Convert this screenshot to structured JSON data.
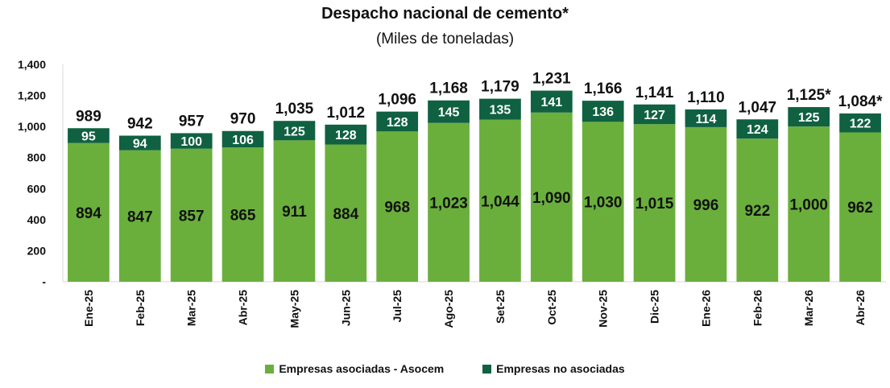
{
  "chart_data": {
    "type": "bar",
    "stacked": true,
    "title": "Despacho nacional de cemento*",
    "subtitle": "(Miles de toneladas)",
    "xlabel": "",
    "ylabel": "",
    "ylim": [
      0,
      1400
    ],
    "y_ticks": [
      0,
      200,
      400,
      600,
      800,
      1000,
      1200,
      1400
    ],
    "y_tick_labels": [
      "-",
      "200",
      "400",
      "600",
      "800",
      "1,000",
      "1,200",
      "1,400"
    ],
    "grid": false,
    "legend_position": "bottom",
    "categories": [
      "Ene-25",
      "Feb-25",
      "Mar-25",
      "Abr-25",
      "May-25",
      "Jun-25",
      "Jul-25",
      "Ago-25",
      "Set-25",
      "Oct-25",
      "Nov-25",
      "Dic-25",
      "Ene-26",
      "Feb-26",
      "Mar-26",
      "Abr-26"
    ],
    "series": [
      {
        "name": "Empresas asociadas - Asocem",
        "color": "#6aaf3c",
        "values": [
          894,
          847,
          857,
          865,
          911,
          884,
          968,
          1023,
          1044,
          1090,
          1030,
          1015,
          996,
          922,
          1000,
          962
        ],
        "labels": [
          "894",
          "847",
          "857",
          "865",
          "911",
          "884",
          "968",
          "1,023",
          "1,044",
          "1,090",
          "1,030",
          "1,015",
          "996",
          "922",
          "1,000",
          "962"
        ]
      },
      {
        "name": "Empresas no asociadas",
        "color": "#0f6141",
        "values": [
          95,
          94,
          100,
          106,
          125,
          128,
          128,
          145,
          135,
          141,
          136,
          127,
          114,
          124,
          125,
          122
        ],
        "labels": [
          "95",
          "94",
          "100",
          "106",
          "125",
          "128",
          "128",
          "145",
          "135",
          "141",
          "136",
          "127",
          "114",
          "124",
          "125",
          "122"
        ]
      }
    ],
    "totals": [
      989,
      942,
      957,
      970,
      1035,
      1012,
      1096,
      1168,
      1179,
      1231,
      1166,
      1141,
      1110,
      1047,
      1125,
      1084
    ],
    "total_labels": [
      "989",
      "942",
      "957",
      "970",
      "1,035",
      "1,012",
      "1,096",
      "1,168",
      "1,179",
      "1,231",
      "1,166",
      "1,141",
      "1,110",
      "1,047",
      "1,125*",
      "1,084*"
    ]
  }
}
